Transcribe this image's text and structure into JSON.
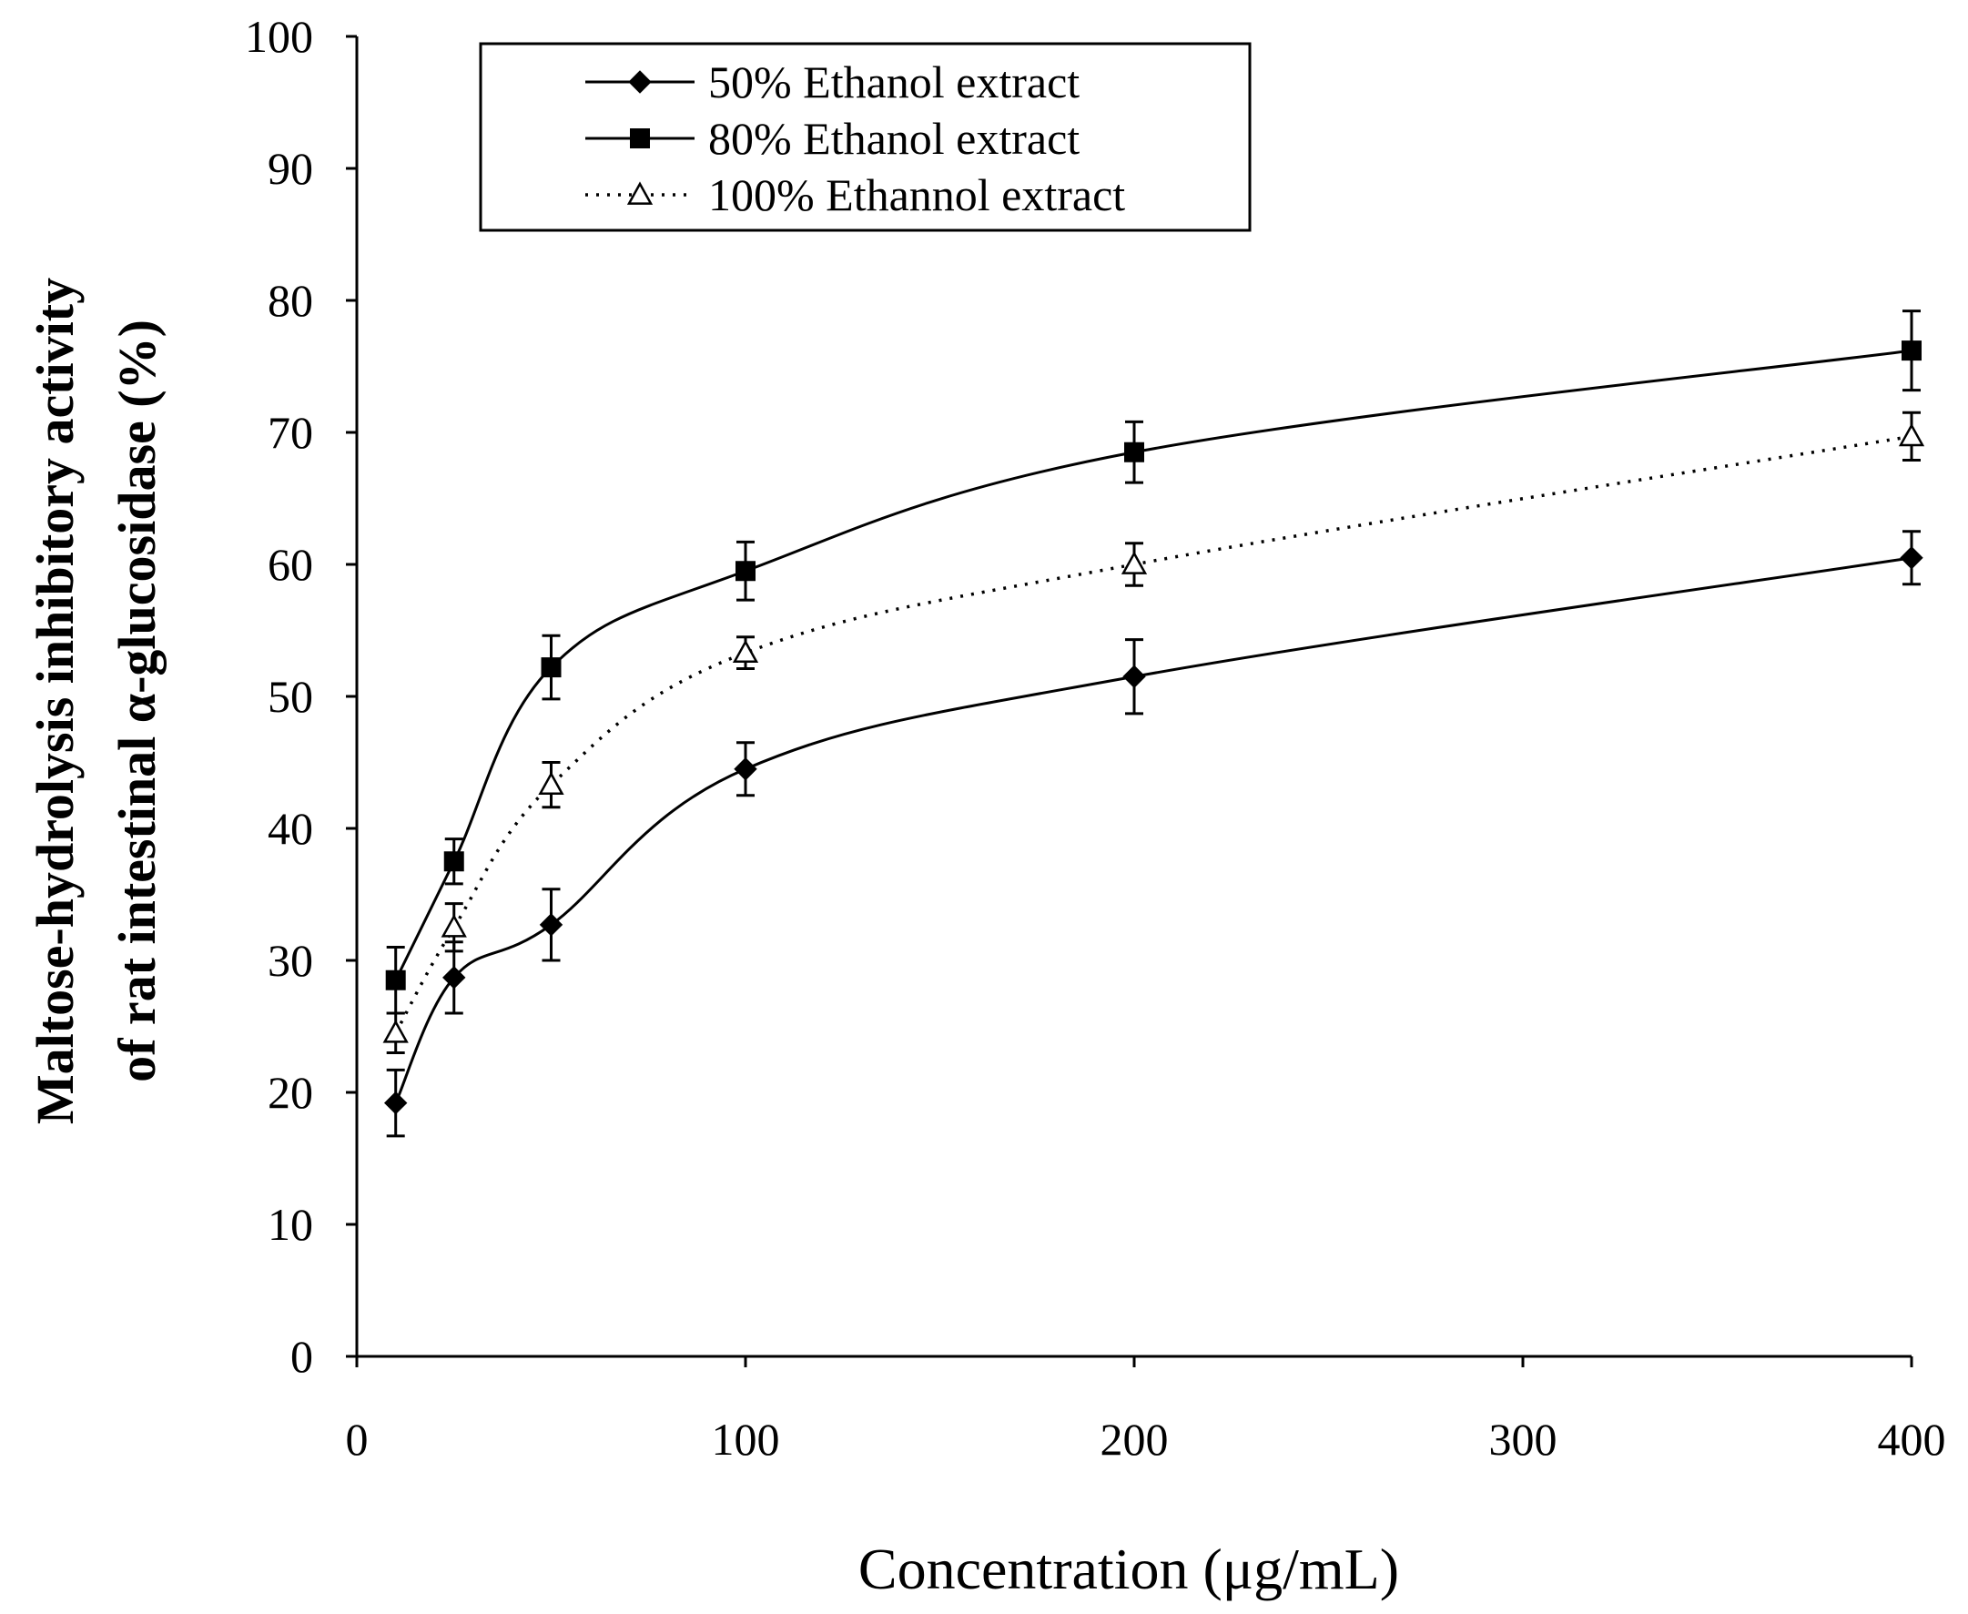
{
  "chart_data": {
    "type": "line",
    "title": "",
    "xlabel": "Concentration (μg/mL)",
    "ylabel_line1": "Maltose-hydrolysis inhibitory activity",
    "ylabel_line2": "of rat intestinal α-glucosidase  (%)",
    "xlim": [
      0,
      400
    ],
    "ylim": [
      0,
      100
    ],
    "x_ticks": [
      0,
      100,
      200,
      300,
      400
    ],
    "y_ticks": [
      0,
      10,
      20,
      30,
      40,
      50,
      60,
      70,
      80,
      90,
      100
    ],
    "x": [
      10,
      25,
      50,
      100,
      200,
      400
    ],
    "legend_position": "top-left",
    "series": [
      {
        "name": "50%   Ethanol extract",
        "marker": "diamond",
        "line": "solid",
        "values": [
          19.2,
          28.7,
          32.7,
          44.5,
          51.5,
          60.5
        ],
        "errors": [
          2.5,
          2.7,
          2.7,
          2.0,
          2.8,
          2.0
        ]
      },
      {
        "name": "80%   Ethanol extract",
        "marker": "square",
        "line": "solid",
        "values": [
          28.5,
          37.5,
          52.2,
          59.5,
          68.5,
          76.2
        ],
        "errors": [
          2.5,
          1.7,
          2.4,
          2.2,
          2.3,
          3.0
        ]
      },
      {
        "name": "100% Ethannol extract",
        "marker": "triangle-open",
        "line": "dotted",
        "values": [
          24.5,
          32.5,
          43.3,
          53.3,
          60.0,
          69.7
        ],
        "errors": [
          1.5,
          1.8,
          1.7,
          1.2,
          1.6,
          1.8
        ]
      }
    ]
  }
}
